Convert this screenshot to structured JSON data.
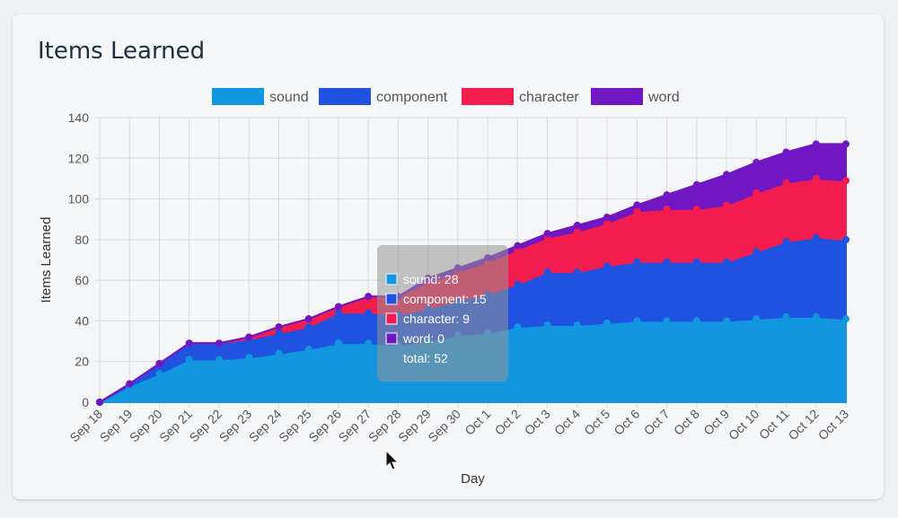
{
  "card": {
    "title": "Items Learned"
  },
  "chart_data": {
    "type": "area",
    "stacked": true,
    "categories": [
      "Sep 18",
      "Sep 19",
      "Sep 20",
      "Sep 21",
      "Sep 22",
      "Sep 23",
      "Sep 24",
      "Sep 25",
      "Sep 26",
      "Sep 27",
      "Sep 28",
      "Sep 29",
      "Sep 30",
      "Oct 1",
      "Oct 2",
      "Oct 3",
      "Oct 4",
      "Oct 5",
      "Oct 6",
      "Oct 7",
      "Oct 8",
      "Oct 9",
      "Oct 10",
      "Oct 11",
      "Oct 12",
      "Oct 13"
    ],
    "series": [
      {
        "name": "sound",
        "color": "#1296e0",
        "values": [
          0,
          8,
          14,
          21,
          21,
          22,
          24,
          26,
          29,
          29,
          28,
          30,
          33,
          34,
          37,
          38,
          38,
          39,
          40,
          40,
          40,
          40,
          41,
          42,
          42,
          41
        ]
      },
      {
        "name": "component",
        "color": "#1f52e0",
        "values": [
          0,
          1,
          5,
          8,
          8,
          9,
          10,
          11,
          15,
          15,
          15,
          16,
          17,
          19,
          21,
          26,
          26,
          28,
          29,
          29,
          29,
          29,
          33,
          37,
          39,
          39
        ]
      },
      {
        "name": "character",
        "color": "#f21c4f",
        "values": [
          0,
          0,
          0,
          0,
          0,
          1,
          3,
          4,
          3,
          8,
          9,
          13,
          14,
          16,
          17,
          17,
          20,
          21,
          25,
          26,
          26,
          28,
          29,
          29,
          29,
          29
        ]
      },
      {
        "name": "word",
        "color": "#7016c2",
        "values": [
          0,
          0,
          0,
          0,
          0,
          0,
          0,
          0,
          0,
          0,
          0,
          2,
          2,
          2,
          2,
          2,
          3,
          3,
          3,
          7,
          12,
          15,
          15,
          15,
          17,
          18
        ]
      }
    ],
    "xlabel": "Day",
    "ylabel": "Items Learned",
    "ylim": [
      0,
      140
    ],
    "yticks": [
      0,
      20,
      40,
      60,
      80,
      100,
      120,
      140
    ],
    "grid": true,
    "legend_position": "top",
    "tooltip": {
      "lines": [
        "sound: 28",
        "component: 15",
        "character: 9",
        "word: 0",
        "total: 52"
      ],
      "colors": [
        "#1296e0",
        "#1f52e0",
        "#f21c4f",
        "#7016c2"
      ]
    }
  }
}
